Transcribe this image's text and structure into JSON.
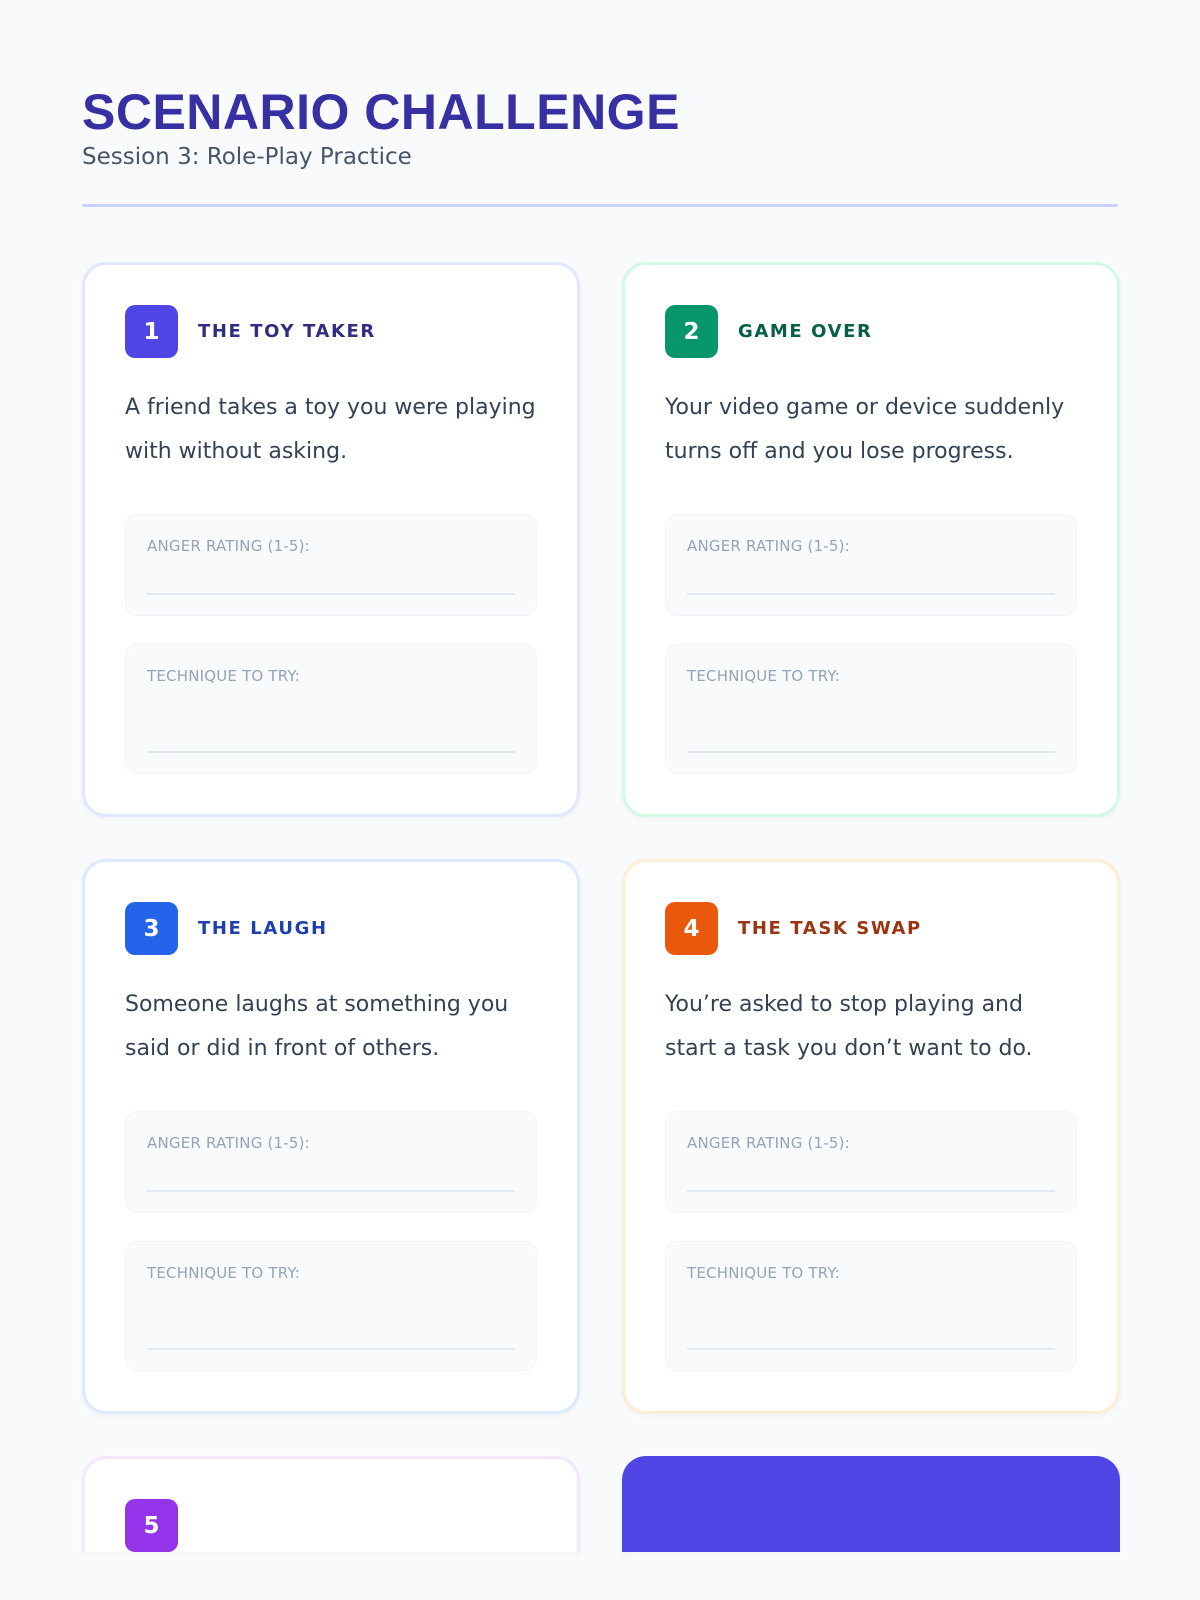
{
  "header": {
    "title": "SCENARIO CHALLENGE",
    "subtitle": "Session 3: Role-Play Practice"
  },
  "fields": {
    "anger_label": "ANGER RATING (1-5):",
    "technique_label": "TECHNIQUE TO TRY:"
  },
  "scenarios": [
    {
      "number": "1",
      "title": "THE TOY TAKER",
      "description": "A friend takes a toy you were playing with without asking.",
      "accent": "#4f46e5",
      "title_color": "#312e81",
      "border": "#e0e7ff"
    },
    {
      "number": "2",
      "title": "GAME OVER",
      "description": "Your video game or device suddenly turns off and you lose progress.",
      "accent": "#059669",
      "title_color": "#065f46",
      "border": "#d1fae5"
    },
    {
      "number": "3",
      "title": "THE LAUGH",
      "description": "Someone laughs at something you said or did in front of others.",
      "accent": "#2563eb",
      "title_color": "#1e40af",
      "border": "#dbeafe"
    },
    {
      "number": "4",
      "title": "THE TASK SWAP",
      "description": "You’re asked to stop playing and start a task you don’t want to do.",
      "accent": "#ea580c",
      "title_color": "#9a3412",
      "border": "#ffedd5"
    },
    {
      "number": "5",
      "accent": "#9333ea",
      "border": "#f3e8ff"
    }
  ],
  "cta_color": "#4f46e5"
}
